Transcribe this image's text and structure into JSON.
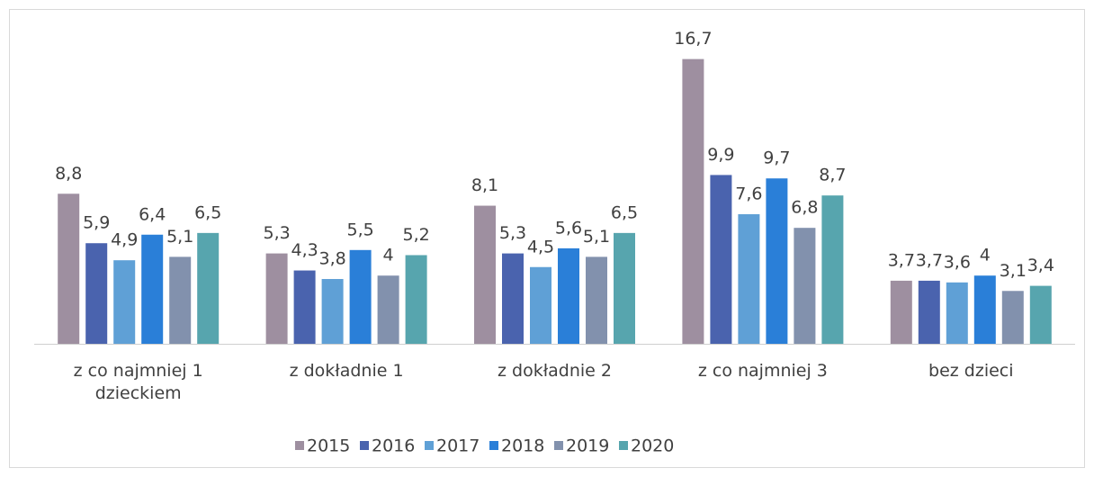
{
  "chart_data": {
    "type": "bar",
    "categories": [
      "z co najmniej 1 dzieckiem",
      "z dokładnie 1",
      "z dokładnie 2",
      "z co najmniej 3",
      "bez dzieci"
    ],
    "ylim": [
      0,
      18
    ],
    "series": [
      {
        "name": "2015",
        "color": "#9e8fa0",
        "values": [
          8.8,
          5.3,
          8.1,
          16.7,
          3.7
        ],
        "value_labels": [
          "8,8",
          "5,3",
          "8,1",
          "16,7",
          "3,7"
        ]
      },
      {
        "name": "2016",
        "color": "#4a63ae",
        "values": [
          5.9,
          4.3,
          5.3,
          9.9,
          3.7
        ],
        "value_labels": [
          "5,9",
          "4,3",
          "5,3",
          "9,9",
          "3,7"
        ]
      },
      {
        "name": "2017",
        "color": "#5fa0d6",
        "values": [
          4.9,
          3.8,
          4.5,
          7.6,
          3.6
        ],
        "value_labels": [
          "4,9",
          "3,8",
          "4,5",
          "7,6",
          "3,6"
        ]
      },
      {
        "name": "2018",
        "color": "#2a7fd8",
        "values": [
          6.4,
          5.5,
          5.6,
          9.7,
          4
        ],
        "value_labels": [
          "6,4",
          "5,5",
          "5,6",
          "9,7",
          "4"
        ]
      },
      {
        "name": "2019",
        "color": "#8291ad",
        "values": [
          5.1,
          4,
          5.1,
          6.8,
          3.1
        ],
        "value_labels": [
          "5,1",
          "4",
          "5,1",
          "6,8",
          "3,1"
        ]
      },
      {
        "name": "2020",
        "color": "#57a5ae",
        "values": [
          6.5,
          5.2,
          6.5,
          8.7,
          3.4
        ],
        "value_labels": [
          "6,5",
          "5,2",
          "6,5",
          "8,7",
          "3,4"
        ]
      }
    ]
  }
}
